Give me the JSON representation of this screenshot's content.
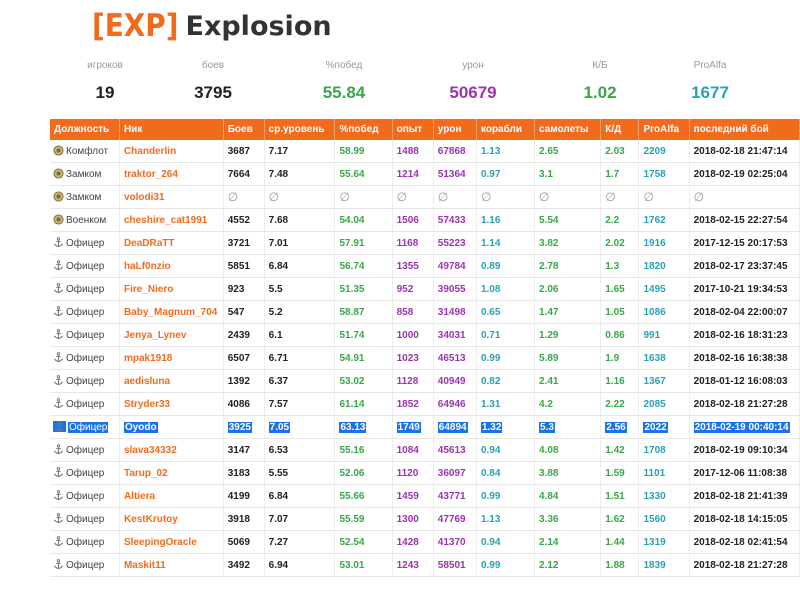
{
  "clan": {
    "tag": "[EXP]",
    "name": "Explosion"
  },
  "stats": [
    {
      "label": "игроков",
      "value": "19",
      "color": "#222222"
    },
    {
      "label": "боев",
      "value": "3795",
      "color": "#222222"
    },
    {
      "label": "%побед",
      "value": "55.84",
      "color": "#3aa64a"
    },
    {
      "label": "урон",
      "value": "50679",
      "color": "#9b34b0"
    },
    {
      "label": "К/Б",
      "value": "1.02",
      "color": "#3aa64a"
    },
    {
      "label": "ProAlfa",
      "value": "1677",
      "color": "#2aa1b3"
    }
  ],
  "columns": [
    "Должность",
    "Ник",
    "Боев",
    "ср.уровень",
    "%побед",
    "опыт",
    "урон",
    "корабли",
    "самолеты",
    "К/Д",
    "ProAlfa",
    "последний бой"
  ],
  "rows": [
    {
      "pos": "Комфлот",
      "icon": "medal-icon",
      "nick": "Chanderlin",
      "battles": "3687",
      "lvl": "7.17",
      "win": "58.99",
      "exp": "1488",
      "dmg": "67868",
      "ships": "1.13",
      "planes": "2.65",
      "kd": "2.03",
      "pa": "2209",
      "last": "2018-02-18 21:47:14"
    },
    {
      "pos": "Замком",
      "icon": "medal-icon",
      "nick": "traktor_264",
      "battles": "7664",
      "lvl": "7.48",
      "win": "55.64",
      "exp": "1214",
      "dmg": "51364",
      "ships": "0.97",
      "planes": "3.1",
      "kd": "1.7",
      "pa": "1758",
      "last": "2018-02-19 02:25:04"
    },
    {
      "pos": "Замком",
      "icon": "medal-icon",
      "nick": "volodi31",
      "battles": "∅",
      "lvl": "∅",
      "win": "∅",
      "exp": "∅",
      "dmg": "∅",
      "ships": "∅",
      "planes": "∅",
      "kd": "∅",
      "pa": "∅",
      "last": "∅"
    },
    {
      "pos": "Военком",
      "icon": "medal-icon",
      "nick": "cheshire_cat1991",
      "battles": "4552",
      "lvl": "7.68",
      "win": "54.04",
      "exp": "1506",
      "dmg": "57433",
      "ships": "1.16",
      "planes": "5.54",
      "kd": "2.2",
      "pa": "1762",
      "last": "2018-02-15 22:27:54"
    },
    {
      "pos": "Офицер",
      "icon": "anchor-icon",
      "nick": "DeaDRaTT",
      "battles": "3721",
      "lvl": "7.01",
      "win": "57.91",
      "exp": "1168",
      "dmg": "55223",
      "ships": "1.14",
      "planes": "3.82",
      "kd": "2.02",
      "pa": "1916",
      "last": "2017-12-15 20:17:53"
    },
    {
      "pos": "Офицер",
      "icon": "anchor-icon",
      "nick": "haLf0nzio",
      "battles": "5851",
      "lvl": "6.84",
      "win": "56.74",
      "exp": "1355",
      "dmg": "49784",
      "ships": "0.89",
      "planes": "2.78",
      "kd": "1.3",
      "pa": "1820",
      "last": "2018-02-17 23:37:45"
    },
    {
      "pos": "Офицер",
      "icon": "anchor-icon",
      "nick": "Fire_Niero",
      "battles": "923",
      "lvl": "5.5",
      "win": "51.35",
      "exp": "952",
      "dmg": "39055",
      "ships": "1.08",
      "planes": "2.06",
      "kd": "1.65",
      "pa": "1495",
      "last": "2017-10-21 19:34:53"
    },
    {
      "pos": "Офицер",
      "icon": "anchor-icon",
      "nick": "Baby_Magnum_704",
      "battles": "547",
      "lvl": "5.2",
      "win": "58.87",
      "exp": "858",
      "dmg": "31498",
      "ships": "0.65",
      "planes": "1.47",
      "kd": "1.05",
      "pa": "1086",
      "last": "2018-02-04 22:00:07"
    },
    {
      "pos": "Офицер",
      "icon": "anchor-icon",
      "nick": "Jenya_Lynev",
      "battles": "2439",
      "lvl": "6.1",
      "win": "51.74",
      "exp": "1000",
      "dmg": "34031",
      "ships": "0.71",
      "planes": "1.29",
      "kd": "0.86",
      "pa": "991",
      "last": "2018-02-16 18:31:23"
    },
    {
      "pos": "Офицер",
      "icon": "anchor-icon",
      "nick": "mpak1918",
      "battles": "6507",
      "lvl": "6.71",
      "win": "54.91",
      "exp": "1023",
      "dmg": "46513",
      "ships": "0.99",
      "planes": "5.89",
      "kd": "1.9",
      "pa": "1638",
      "last": "2018-02-16 16:38:38"
    },
    {
      "pos": "Офицер",
      "icon": "anchor-icon",
      "nick": "aedisluna",
      "battles": "1392",
      "lvl": "6.37",
      "win": "53.02",
      "exp": "1128",
      "dmg": "40949",
      "ships": "0.82",
      "planes": "2.41",
      "kd": "1.16",
      "pa": "1367",
      "last": "2018-01-12 16:08:03"
    },
    {
      "pos": "Офицер",
      "icon": "anchor-icon",
      "nick": "Stryder33",
      "battles": "4086",
      "lvl": "7.57",
      "win": "61.14",
      "exp": "1852",
      "dmg": "64946",
      "ships": "1.31",
      "planes": "4.2",
      "kd": "2.22",
      "pa": "2085",
      "last": "2018-02-18 21:27:28"
    },
    {
      "pos": "Офицер",
      "icon": "anchor-icon",
      "nick": "Oyodo",
      "battles": "3925",
      "lvl": "7.05",
      "win": "63.13",
      "exp": "1749",
      "dmg": "64894",
      "ships": "1.32",
      "planes": "5.3",
      "kd": "2.56",
      "pa": "2022",
      "last": "2018-02-19 00:40:14",
      "selected": true
    },
    {
      "pos": "Офицер",
      "icon": "anchor-icon",
      "nick": "slava34332",
      "battles": "3147",
      "lvl": "6.53",
      "win": "55.16",
      "exp": "1084",
      "dmg": "45613",
      "ships": "0.94",
      "planes": "4.08",
      "kd": "1.42",
      "pa": "1708",
      "last": "2018-02-19 09:10:34"
    },
    {
      "pos": "Офицер",
      "icon": "anchor-icon",
      "nick": "Tarup_02",
      "battles": "3183",
      "lvl": "5.55",
      "win": "52.06",
      "exp": "1120",
      "dmg": "36097",
      "ships": "0.84",
      "planes": "3.88",
      "kd": "1.59",
      "pa": "1101",
      "last": "2017-12-06 11:08:38"
    },
    {
      "pos": "Офицер",
      "icon": "anchor-icon",
      "nick": "Altiera",
      "battles": "4199",
      "lvl": "6.84",
      "win": "55.66",
      "exp": "1459",
      "dmg": "43771",
      "ships": "0.99",
      "planes": "4.84",
      "kd": "1.51",
      "pa": "1330",
      "last": "2018-02-18 21:41:39"
    },
    {
      "pos": "Офицер",
      "icon": "anchor-icon",
      "nick": "KestKrutoy",
      "battles": "3918",
      "lvl": "7.07",
      "win": "55.59",
      "exp": "1300",
      "dmg": "47769",
      "ships": "1.13",
      "planes": "3.36",
      "kd": "1.62",
      "pa": "1560",
      "last": "2018-02-18 14:15:05"
    },
    {
      "pos": "Офицер",
      "icon": "anchor-icon",
      "nick": "SleepingOracle",
      "battles": "5069",
      "lvl": "7.27",
      "win": "52.54",
      "exp": "1428",
      "dmg": "41370",
      "ships": "0.94",
      "planes": "2.14",
      "kd": "1.44",
      "pa": "1319",
      "last": "2018-02-18 02:41:54"
    },
    {
      "pos": "Офицер",
      "icon": "anchor-icon",
      "nick": "Maskit11",
      "battles": "3492",
      "lvl": "6.94",
      "win": "53.01",
      "exp": "1243",
      "dmg": "58501",
      "ships": "0.99",
      "planes": "2.12",
      "kd": "1.88",
      "pa": "1839",
      "last": "2018-02-18 21:27:28"
    }
  ]
}
